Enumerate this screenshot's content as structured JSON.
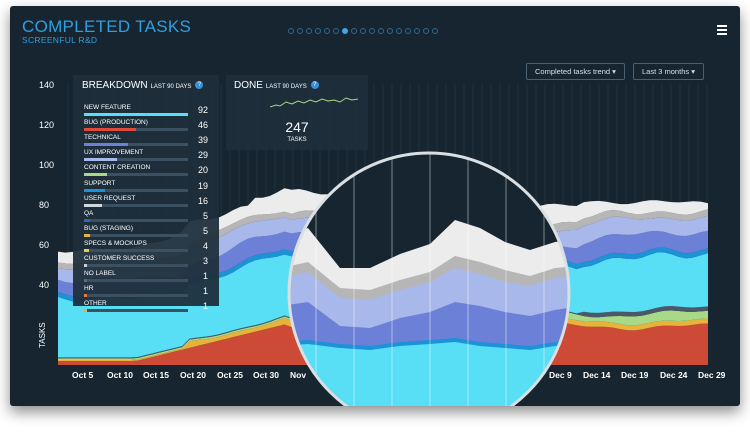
{
  "header": {
    "title": "COMPLETED TASKS",
    "subtitle": "SCREENFUL R&D"
  },
  "pager": {
    "count": 17,
    "active_index": 6
  },
  "controls": {
    "trend_label": "Completed tasks trend",
    "range_label": "Last 3 months"
  },
  "chart_data": {
    "type": "area",
    "ylabel": "TASKS",
    "yticks": [
      40,
      60,
      80,
      100,
      120,
      140
    ],
    "ylim": [
      0,
      145
    ],
    "x_labels": [
      "Oct 5",
      "Oct 10",
      "Oct 15",
      "Oct 20",
      "Oct 25",
      "Oct 30",
      "Nov",
      "Dec 9",
      "Dec 14",
      "Dec 19",
      "Dec 24",
      "Dec 29"
    ],
    "colors": [
      "#cc4a36",
      "#e8b33a",
      "#a8d986",
      "#4a5868",
      "#58dff6",
      "#1c92d8",
      "#6d80d8",
      "#a9b8ea",
      "#b6b6b6",
      "#ececec"
    ]
  },
  "breakdown": {
    "title": "BREAKDOWN",
    "period": "LAST 90 DAYS",
    "help": "?",
    "max": 92,
    "items": [
      {
        "label": "NEW FEATURE",
        "value": 92,
        "color": "#58dff6"
      },
      {
        "label": "BUG (PRODUCTION)",
        "value": 46,
        "color": "#e04a3a"
      },
      {
        "label": "TECHNICAL",
        "value": 39,
        "color": "#6d80d8"
      },
      {
        "label": "UX IMPROVEMENT",
        "value": 29,
        "color": "#a9b8ea"
      },
      {
        "label": "CONTENT CREATION",
        "value": 20,
        "color": "#a8d986"
      },
      {
        "label": "SUPPORT",
        "value": 19,
        "color": "#1c92d8"
      },
      {
        "label": "USER REQUEST",
        "value": 16,
        "color": "#cfd6dc"
      },
      {
        "label": "QA",
        "value": 5,
        "color": "#2c68c0"
      },
      {
        "label": "BUG (STAGING)",
        "value": 5,
        "color": "#e8b33a"
      },
      {
        "label": "SPECS & MOCKUPS",
        "value": 4,
        "color": "#e8d23a"
      },
      {
        "label": "CUSTOMER SUCCESS",
        "value": 3,
        "color": "#cccccc"
      },
      {
        "label": "NO LABEL",
        "value": 1,
        "color": "#5a6c78"
      },
      {
        "label": "HR",
        "value": 1,
        "color": "#e07a3a"
      },
      {
        "label": "OTHER",
        "value": 1,
        "color": "#e8b33a"
      }
    ]
  },
  "done": {
    "title": "DONE",
    "period": "LAST 90 DAYS",
    "help": "?",
    "count": "247",
    "unit": "TASKS"
  }
}
